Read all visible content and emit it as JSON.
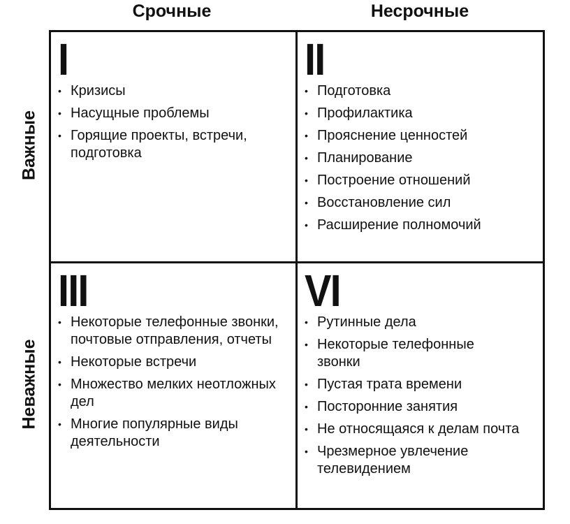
{
  "columns": [
    "Срочные",
    "Несрочные"
  ],
  "rows": [
    "Важные",
    "Неважные"
  ],
  "quadrants": [
    {
      "numeral": "I",
      "items": [
        "Кризисы",
        "Насущные проблемы",
        "Горящие проекты, встречи, подготовка"
      ]
    },
    {
      "numeral": "II",
      "items": [
        "Подготовка",
        "Профилактика",
        "Прояснение ценностей",
        "Планирование",
        "Построение отношений",
        "Восстановление сил",
        "Расширение полномочий"
      ]
    },
    {
      "numeral": "III",
      "items": [
        "Некоторые телефонные звонки, почтовые отправления, отчеты",
        "Некоторые встречи",
        "Множество мелких неотложных дел",
        "Многие популярные виды деятельности"
      ]
    },
    {
      "numeral": "VI",
      "items": [
        "Рутинные дела",
        "Некоторые телефонные звонки",
        "Пустая трата времени",
        "Посторонние занятия",
        "Не относящаяся к делам почта",
        "Чрезмерное увлечение телевидением"
      ]
    }
  ]
}
